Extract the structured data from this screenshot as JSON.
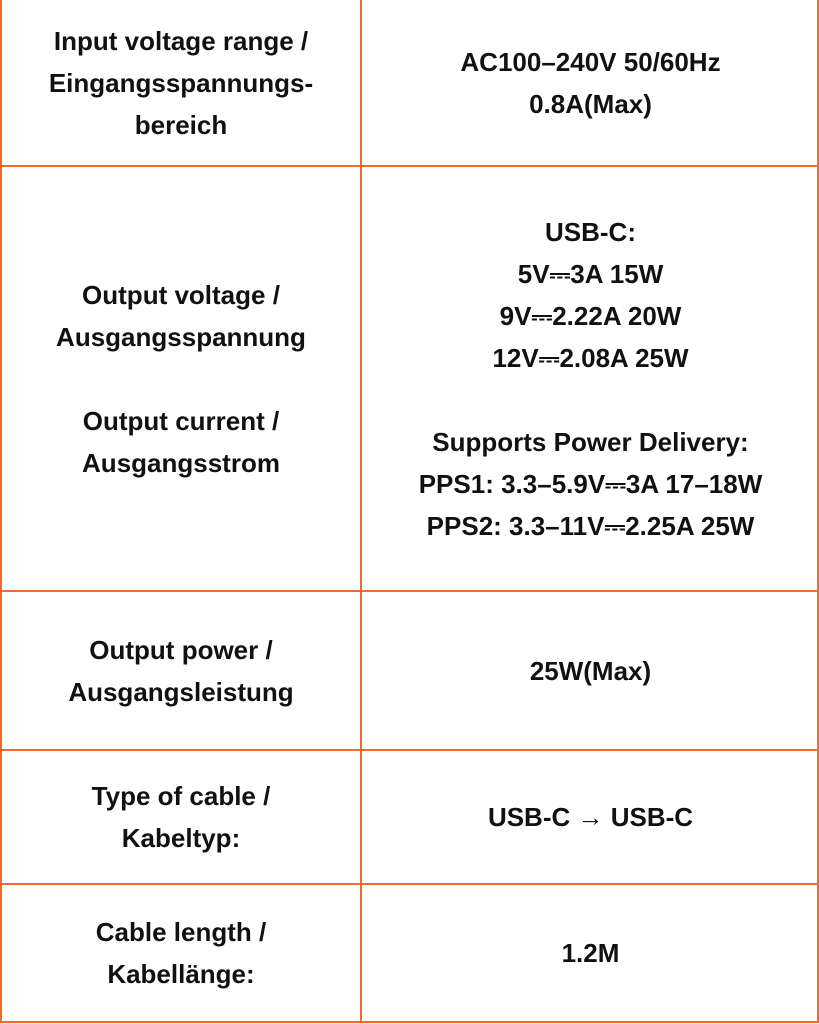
{
  "border_color": "#f26b2e",
  "rows": [
    {
      "label": [
        "Input voltage range /",
        "Eingangsspannungs-",
        "bereich"
      ],
      "value": [
        "AC100–240V 50/60Hz",
        "0.8A(Max)"
      ]
    },
    {
      "label": [
        "Output voltage /",
        "Ausgangsspannung",
        "Output current /",
        "Ausgangsstrom"
      ],
      "value": [
        "USB-C:",
        "5V⎓3A 15W",
        "9V⎓2.22A 20W",
        "12V⎓2.08A 25W",
        "Supports Power Delivery:",
        "PPS1: 3.3–5.9V⎓3A 17–18W",
        "PPS2: 3.3–11V⎓2.25A 25W"
      ]
    },
    {
      "label": [
        "Output power /",
        "Ausgangsleistung"
      ],
      "value": [
        "25W(Max)"
      ]
    },
    {
      "label": [
        "Type of cable /",
        "Kabeltyp:"
      ],
      "value": [
        "USB-C → USB-C"
      ]
    },
    {
      "label": [
        "Cable length /",
        "Kabellänge:"
      ],
      "value": [
        "1.2M"
      ]
    }
  ]
}
